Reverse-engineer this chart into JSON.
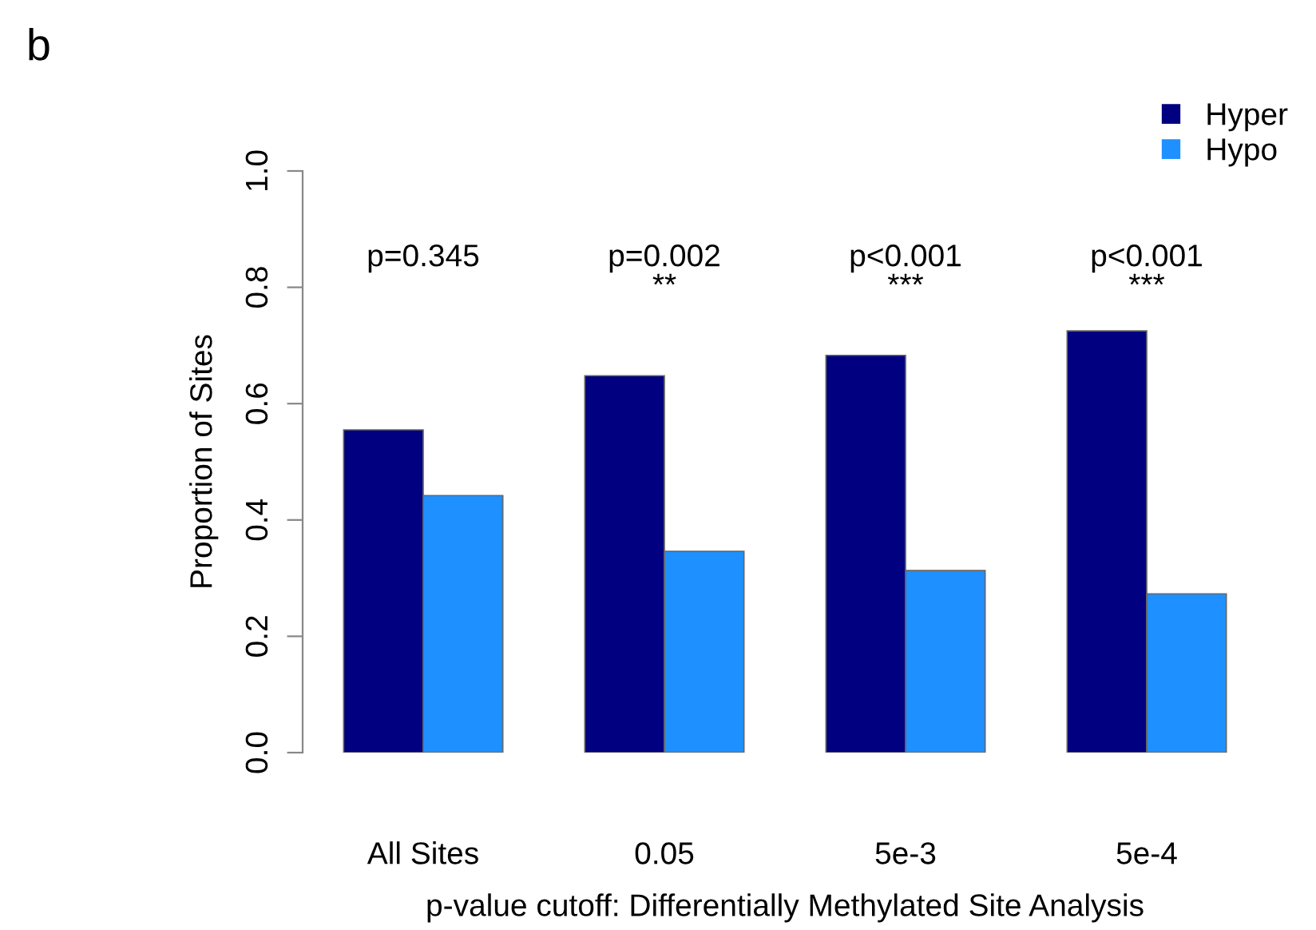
{
  "chart_data": {
    "type": "bar",
    "ylabel": "Proportion of Sites",
    "xlabel": "p-value cutoff: Differentially Methylated Site Analysis",
    "categories": [
      "All Sites",
      "0.05",
      "5e-3",
      "5e-4"
    ],
    "series": [
      {
        "name": "Hyper",
        "color": "#000080",
        "values": [
          0.555,
          0.648,
          0.683,
          0.725
        ]
      },
      {
        "name": "Hypo",
        "color": "#1e90ff",
        "values": [
          0.442,
          0.346,
          0.313,
          0.273
        ]
      }
    ],
    "ylim": [
      0,
      1
    ],
    "yticks": [
      {
        "value": 0,
        "label": "0.0"
      },
      0.2,
      0.4,
      0.6,
      0.8,
      {
        "value": 1,
        "label": "1.0"
      }
    ],
    "legend": "top right",
    "grid": false,
    "annotations": [
      "p=0.345",
      "p=0.002\n**",
      "p<0.001\n***",
      "p<0.001\n***",
      "b"
    ]
  }
}
